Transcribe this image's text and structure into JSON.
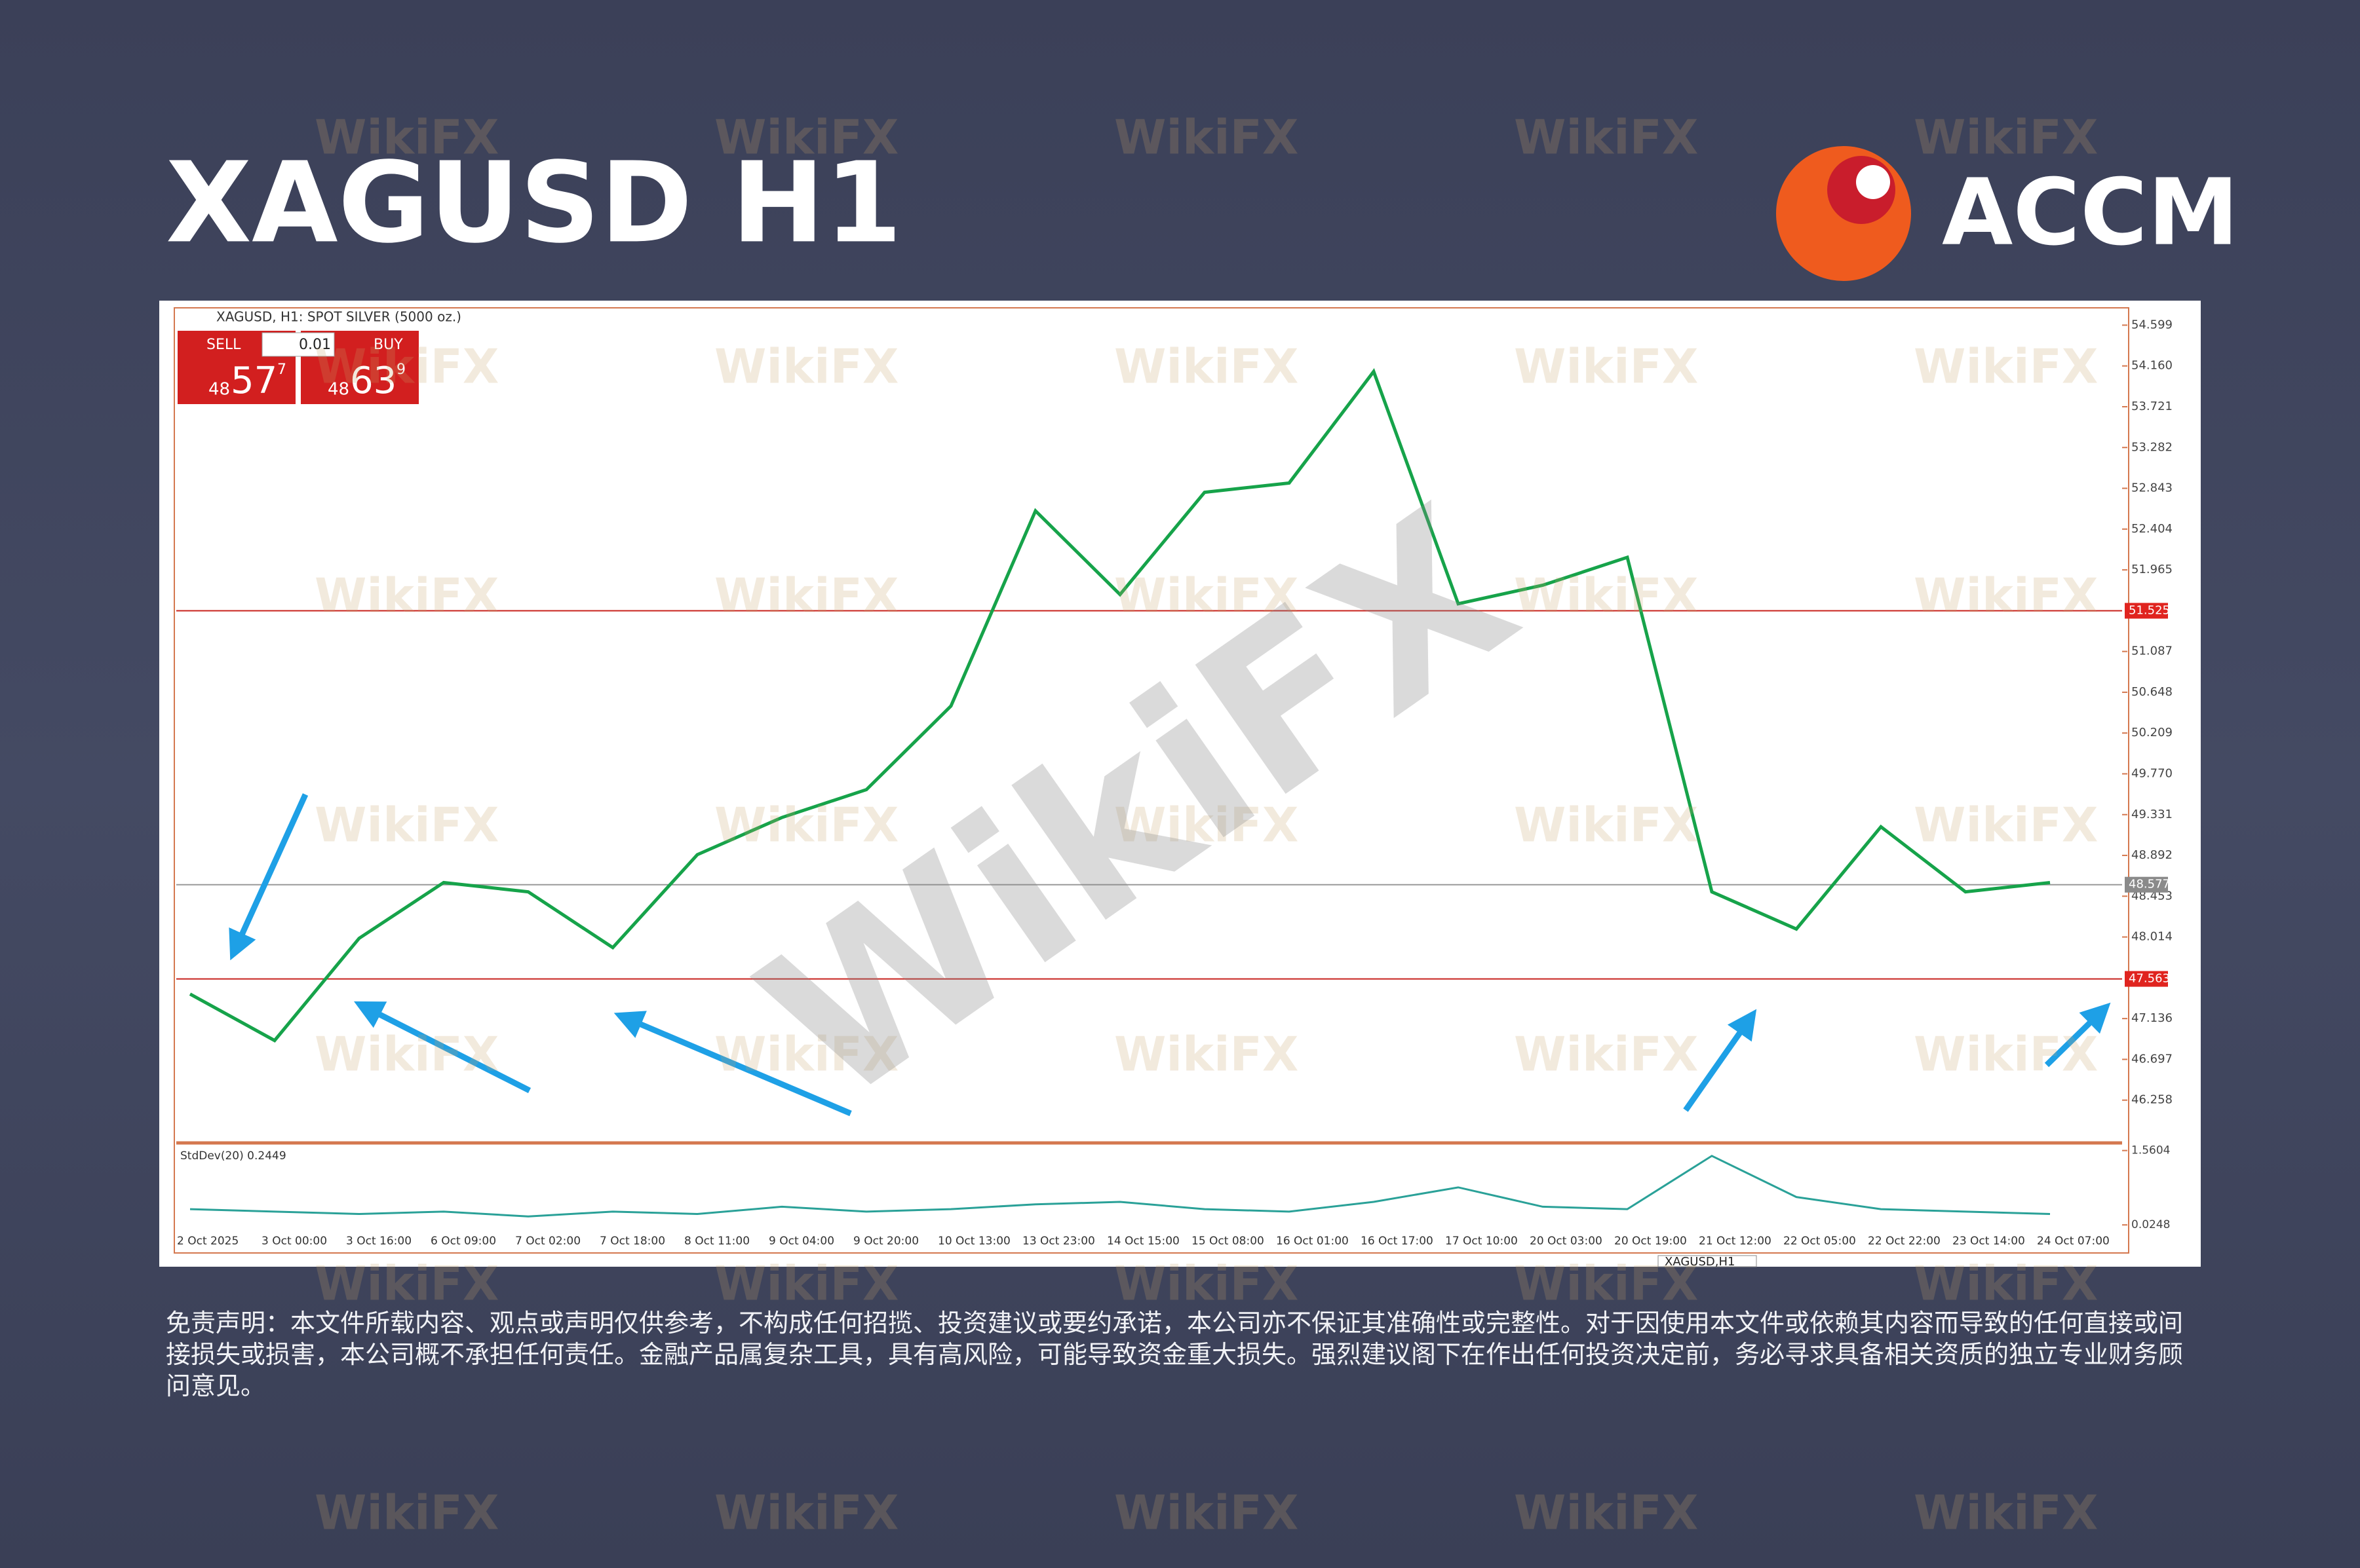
{
  "header": {
    "title": "XAGUSD H1",
    "brand": "ACCM"
  },
  "watermark": "WikiFX",
  "trade_panel": {
    "symbol": "XAGUSD, H1:  SPOT SILVER (5000 oz.)",
    "sell": "SELL",
    "buy": "BUY",
    "lot": "0.01",
    "sell_price": [
      "48",
      "57",
      "7"
    ],
    "buy_price": [
      "48",
      "63",
      "9"
    ]
  },
  "chart_data": {
    "type": "line",
    "color": "#16a34a",
    "categories": [
      "2 Oct 2025",
      "3 Oct 00:00",
      "3 Oct 16:00",
      "6 Oct 09:00",
      "7 Oct 02:00",
      "7 Oct 18:00",
      "8 Oct 11:00",
      "9 Oct 04:00",
      "9 Oct 20:00",
      "10 Oct 13:00",
      "13 Oct 23:00",
      "14 Oct 15:00",
      "15 Oct 08:00",
      "16 Oct 01:00",
      "16 Oct 17:00",
      "17 Oct 10:00",
      "20 Oct 03:00",
      "20 Oct 19:00",
      "21 Oct 12:00",
      "22 Oct 05:00",
      "22 Oct 22:00",
      "23 Oct 14:00",
      "24 Oct 07:00"
    ],
    "values": [
      47.4,
      46.9,
      48.0,
      48.6,
      48.5,
      47.9,
      48.9,
      49.3,
      49.6,
      50.5,
      52.6,
      51.7,
      52.8,
      52.9,
      54.1,
      51.6,
      51.8,
      52.1,
      48.5,
      48.1,
      49.2,
      48.5,
      48.6
    ],
    "ylim": [
      45.84,
      54.75
    ],
    "yticks": [
      54.599,
      {
        "value": 54.16,
        "label": "54.160"
      },
      53.721,
      53.282,
      52.843,
      52.404,
      51.965,
      51.087,
      50.648,
      50.209,
      {
        "value": 49.77,
        "label": "49.770"
      },
      49.331,
      48.892,
      48.453,
      48.014,
      47.136,
      46.697,
      46.258
    ],
    "levels": [
      51.525,
      47.563
    ],
    "current": 48.577,
    "indicator": {
      "label": "StdDev(20) 0.2449",
      "values": [
        0.35,
        0.3,
        0.25,
        0.3,
        0.2,
        0.3,
        0.25,
        0.4,
        0.3,
        0.35,
        0.45,
        0.5,
        0.35,
        0.3,
        0.5,
        0.8,
        0.4,
        0.35,
        1.45,
        0.6,
        0.35,
        0.3,
        0.25
      ],
      "ylim": [
        0,
        1.65
      ],
      "yticks": [
        1.5604,
        0.0248
      ]
    },
    "active_tab": "XAGUSD,H1"
  },
  "disclaimer": "免责声明：本文件所载内容、观点或声明仅供参考，不构成任何招揽、投资建议或要约承诺，本公司亦不保证其准确性或完整性。对于因使用本文件或依赖其内容而导致的任何直接或间接损失或损害，本公司概不承担任何责任。金融产品属复杂工具，具有高风险，可能导致资金重大损失。强烈建议阁下在作出任何投资决定前，务必寻求具备相关资质的独立专业财务顾问意见。"
}
